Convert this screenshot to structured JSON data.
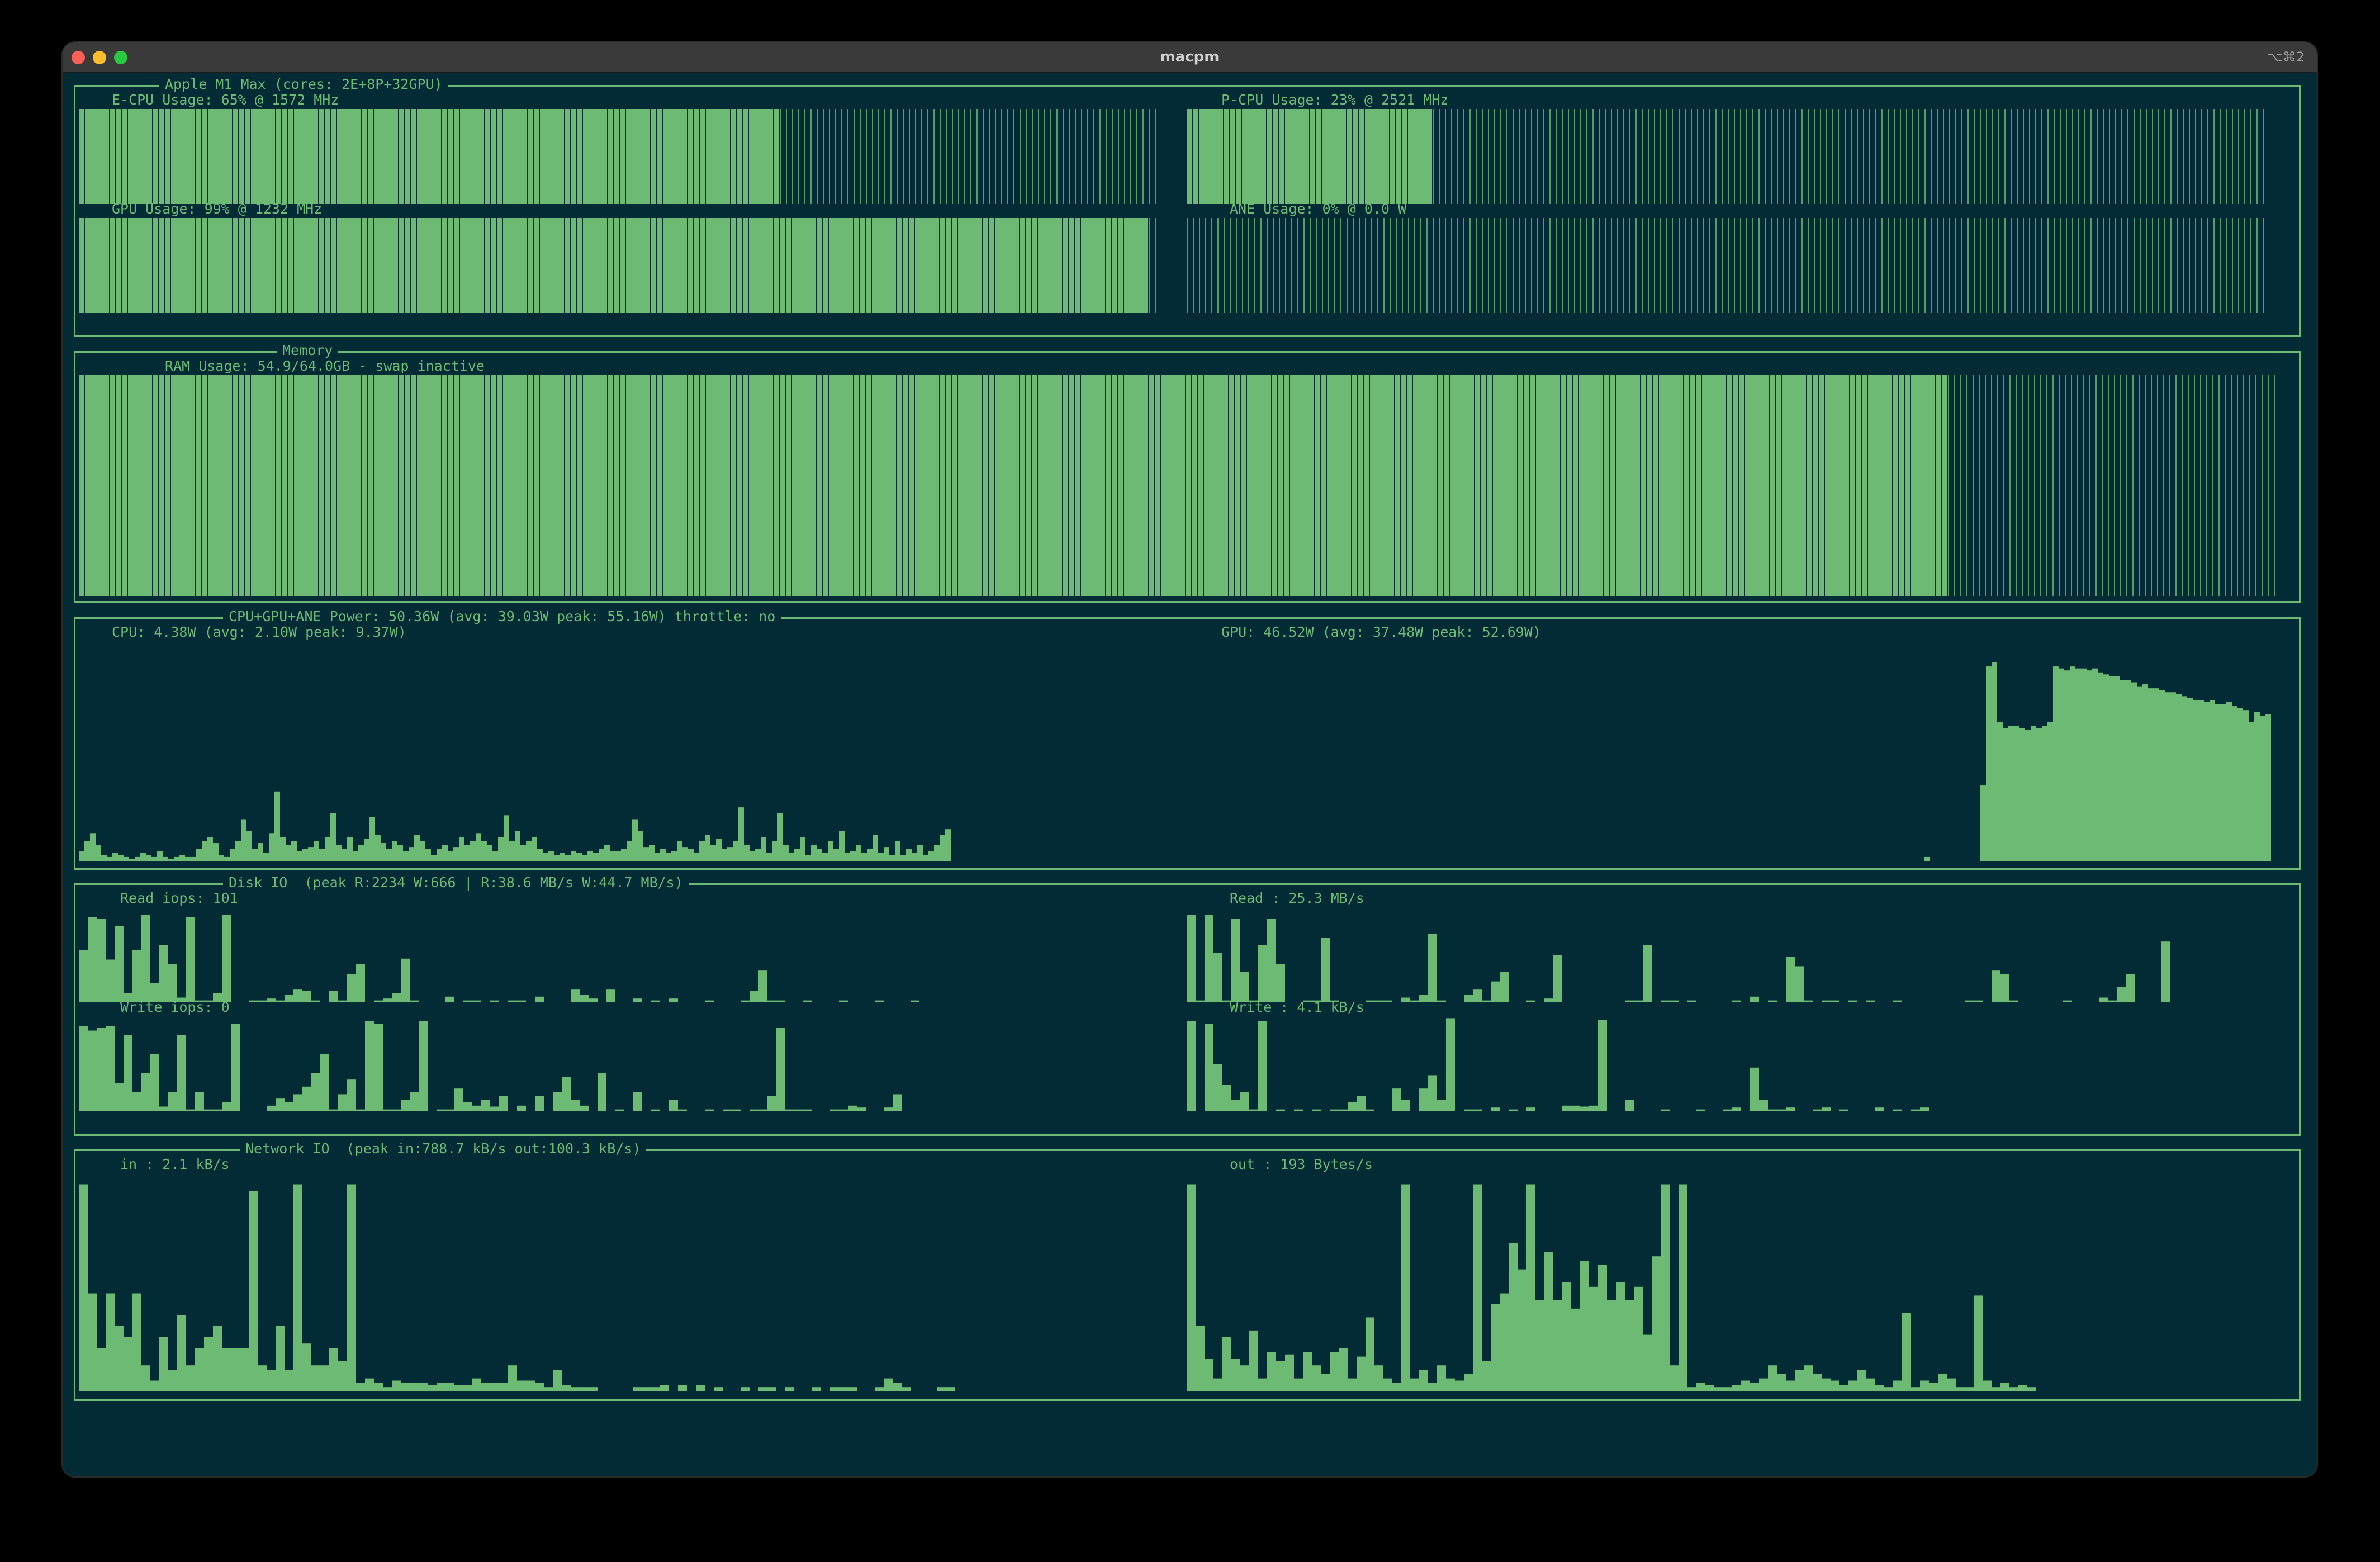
{
  "window": {
    "title": "macpm",
    "shortcut": "⌥⌘2"
  },
  "colors": {
    "background": "#022b35",
    "accent": "#6dba74",
    "titlebar": "#3a3a3a"
  },
  "processor": {
    "title": "Apple M1 Max (cores: 2E+8P+32GPU)",
    "ecpu": {
      "label": "E-CPU Usage: 65% @ 1572 MHz",
      "usage_percent": 65
    },
    "pcpu": {
      "label": "P-CPU Usage: 23% @ 2521 MHz",
      "usage_percent": 23
    },
    "gpu": {
      "label": "GPU Usage: 99% @ 1232 MHz",
      "usage_percent": 99
    },
    "ane": {
      "label": "ANE Usage: 0% @ 0.0 W",
      "usage_percent": 0
    }
  },
  "memory": {
    "title": "Memory",
    "ram": {
      "label": "RAM Usage: 54.9/64.0GB - swap inactive",
      "usage_percent": 85
    }
  },
  "power": {
    "title": "CPU+GPU+ANE Power: 50.36W (avg: 39.03W peak: 55.16W) throttle: no",
    "cpu": {
      "label": "CPU: 4.38W (avg: 2.10W peak: 9.37W)"
    },
    "gpu": {
      "label": "GPU: 46.52W (avg: 37.48W peak: 52.69W)"
    }
  },
  "disk": {
    "title": "Disk IO  (peak R:2234 W:666 | R:38.6 MB/s W:44.7 MB/s)",
    "read_iops": {
      "label": "Read iops: 101"
    },
    "read": {
      "label": "Read : 25.3 MB/s"
    },
    "write_iops": {
      "label": "Write iops: 0"
    },
    "write": {
      "label": "Write : 4.1 kB/s"
    }
  },
  "network": {
    "title": "Network IO  (peak in:788.7 kB/s out:100.3 kB/s)",
    "in": {
      "label": "in : 2.1 kB/s"
    },
    "out": {
      "label": "out : 193 Bytes/s"
    }
  },
  "series": {
    "cpu_power": [
      0.05,
      0.1,
      0.14,
      0.08,
      0.03,
      0.02,
      0.04,
      0.03,
      0.02,
      0.01,
      0.02,
      0.04,
      0.03,
      0.02,
      0.05,
      0.02,
      0.01,
      0.02,
      0.03,
      0.02,
      0.02,
      0.06,
      0.1,
      0.12,
      0.09,
      0.03,
      0.02,
      0.06,
      0.1,
      0.21,
      0.15,
      0.06,
      0.09,
      0.04,
      0.14,
      0.35,
      0.12,
      0.08,
      0.1,
      0.05,
      0.06,
      0.07,
      0.1,
      0.06,
      0.12,
      0.24,
      0.08,
      0.06,
      0.12,
      0.05,
      0.08,
      0.11,
      0.22,
      0.13,
      0.09,
      0.06,
      0.1,
      0.08,
      0.05,
      0.07,
      0.13,
      0.1,
      0.06,
      0.03,
      0.06,
      0.08,
      0.05,
      0.07,
      0.12,
      0.08,
      0.1,
      0.14,
      0.1,
      0.08,
      0.05,
      0.12,
      0.23,
      0.1,
      0.15,
      0.08,
      0.1,
      0.12,
      0.06,
      0.04,
      0.05,
      0.03,
      0.04,
      0.03,
      0.05,
      0.04,
      0.03,
      0.05,
      0.04,
      0.06,
      0.08,
      0.05,
      0.05,
      0.06,
      0.1,
      0.21,
      0.15,
      0.07,
      0.08,
      0.04,
      0.06,
      0.04,
      0.05,
      0.1,
      0.07,
      0.06,
      0.04,
      0.1,
      0.13,
      0.08,
      0.11,
      0.06,
      0.07,
      0.1,
      0.27,
      0.08,
      0.05,
      0.06,
      0.12,
      0.04,
      0.1,
      0.24,
      0.08,
      0.04,
      0.06,
      0.12,
      0.03,
      0.08,
      0.06,
      0.04,
      0.1,
      0.06,
      0.15,
      0.04,
      0.05,
      0.08,
      0.04,
      0.06,
      0.13,
      0.04,
      0.07,
      0.03,
      0.1,
      0.03,
      0.06,
      0.04,
      0.08,
      0.03,
      0.05,
      0.08,
      0.13,
      0.16
    ],
    "gpu_power": [
      0,
      0,
      0,
      0,
      0,
      0,
      0,
      0,
      0,
      0,
      0,
      0,
      0,
      0,
      0,
      0,
      0,
      0,
      0,
      0,
      0,
      0,
      0,
      0,
      0,
      0,
      0,
      0,
      0,
      0,
      0,
      0,
      0,
      0,
      0,
      0,
      0,
      0,
      0,
      0,
      0,
      0,
      0,
      0,
      0,
      0,
      0,
      0,
      0,
      0,
      0,
      0,
      0,
      0,
      0,
      0,
      0,
      0,
      0,
      0,
      0,
      0,
      0,
      0,
      0,
      0,
      0,
      0,
      0,
      0,
      0,
      0,
      0,
      0,
      0,
      0,
      0,
      0,
      0,
      0,
      0,
      0,
      0,
      0,
      0,
      0,
      0,
      0,
      0,
      0,
      0,
      0,
      0,
      0,
      0,
      0,
      0,
      0,
      0,
      0,
      0,
      0,
      0,
      0,
      0,
      0,
      0,
      0,
      0,
      0,
      0,
      0,
      0,
      0,
      0,
      0,
      0,
      0,
      0,
      0,
      0,
      0,
      0,
      0,
      0,
      0,
      0,
      0,
      0,
      0,
      0,
      0,
      0.02,
      0,
      0,
      0,
      0,
      0,
      0,
      0,
      0,
      0,
      0.38,
      0.98,
      1.0,
      0.7,
      0.67,
      0.68,
      0.68,
      0.67,
      0.66,
      0.68,
      0.67,
      0.68,
      0.7,
      0.98,
      0.97,
      0.96,
      0.98,
      0.97,
      0.97,
      0.96,
      0.97,
      0.95,
      0.94,
      0.93,
      0.93,
      0.91,
      0.91,
      0.9,
      0.88,
      0.89,
      0.87,
      0.87,
      0.86,
      0.85,
      0.85,
      0.84,
      0.83,
      0.82,
      0.81,
      0.81,
      0.8,
      0.81,
      0.79,
      0.79,
      0.8,
      0.78,
      0.77,
      0.76,
      0.7,
      0.75,
      0.73,
      0.74,
      0.74,
      0.75,
      0.73,
      0.74,
      0.73,
      0.74,
      0.73,
      0.75,
      0.97,
      0.99,
      0.98,
      0.98,
      0.97,
      0.99,
      0.95,
      0.9,
      0.88
    ],
    "read_iops": [
      0.55,
      0.9,
      0.88,
      0.45,
      0.8,
      0.1,
      0.55,
      0.92,
      0.2,
      0.6,
      0.4,
      0.05,
      0.9,
      0.02,
      0.02,
      0.1,
      0.92,
      0,
      0,
      0.02,
      0.02,
      0.04,
      0.02,
      0.08,
      0.14,
      0.12,
      0.02,
      0,
      0.12,
      0.02,
      0.3,
      0.4,
      0,
      0.02,
      0.04,
      0.1,
      0.46,
      0.02,
      0,
      0,
      0,
      0.06,
      0,
      0.02,
      0.02,
      0,
      0.02,
      0,
      0.02,
      0.02,
      0,
      0.06,
      0,
      0,
      0,
      0.14,
      0.08,
      0.04,
      0,
      0.14,
      0,
      0,
      0.04,
      0,
      0.02,
      0,
      0.04,
      0,
      0,
      0,
      0.02,
      0,
      0,
      0,
      0.02,
      0.12,
      0.34,
      0.02,
      0.02,
      0,
      0,
      0.02,
      0,
      0,
      0,
      0.02,
      0,
      0,
      0,
      0.02,
      0,
      0,
      0,
      0.02
    ],
    "read_mbps": [
      0.92,
      0.02,
      0.92,
      0.52,
      0.02,
      0.88,
      0.32,
      0.02,
      0.6,
      0.88,
      0.4,
      0,
      0,
      0.02,
      0.02,
      0.68,
      0.02,
      0,
      0,
      0,
      0.02,
      0.02,
      0.02,
      0,
      0.05,
      0.02,
      0.08,
      0.72,
      0.02,
      0,
      0,
      0.08,
      0.14,
      0.02,
      0.22,
      0.32,
      0,
      0,
      0.02,
      0,
      0.04,
      0.5,
      0,
      0,
      0,
      0,
      0,
      0,
      0,
      0.02,
      0.02,
      0.6,
      0,
      0.02,
      0.02,
      0,
      0.02,
      0,
      0,
      0,
      0,
      0.02,
      0,
      0.06,
      0,
      0.02,
      0,
      0.48,
      0.38,
      0.02,
      0,
      0.02,
      0.02,
      0,
      0.02,
      0,
      0.02,
      0,
      0,
      0.02,
      0,
      0,
      0,
      0,
      0,
      0,
      0,
      0.02,
      0.02,
      0,
      0.34,
      0.3,
      0.02,
      0,
      0,
      0,
      0,
      0,
      0.02,
      0,
      0,
      0,
      0.05,
      0.02,
      0.16,
      0.3,
      0,
      0,
      0,
      0.64
    ],
    "write_iops": [
      0.9,
      0.85,
      0.88,
      0.9,
      0.3,
      0.8,
      0.2,
      0.4,
      0.6,
      0.05,
      0.2,
      0.8,
      0.02,
      0.2,
      0.02,
      0.02,
      0.1,
      0.92,
      0,
      0,
      0,
      0.06,
      0.14,
      0.1,
      0.18,
      0.26,
      0.4,
      0.6,
      0.02,
      0.18,
      0.34,
      0.02,
      0.95,
      0.92,
      0.02,
      0.02,
      0.12,
      0.2,
      0.95,
      0,
      0.02,
      0.02,
      0.24,
      0.1,
      0.06,
      0.12,
      0.05,
      0.16,
      0,
      0.06,
      0,
      0.16,
      0,
      0.2,
      0.36,
      0.12,
      0.06,
      0,
      0.4,
      0,
      0.02,
      0,
      0.2,
      0,
      0.02,
      0,
      0.12,
      0.02,
      0,
      0,
      0.02,
      0,
      0.02,
      0.02,
      0,
      0.02,
      0.02,
      0.16,
      0.88,
      0.02,
      0.02,
      0.02,
      0,
      0,
      0.02,
      0.02,
      0.06,
      0.04,
      0,
      0,
      0.04,
      0.18
    ],
    "write_kbps": [
      0.95,
      0,
      0.92,
      0.5,
      0.28,
      0.12,
      0.2,
      0.02,
      0.95,
      0,
      0.02,
      0,
      0.02,
      0,
      0.02,
      0,
      0.02,
      0.02,
      0.1,
      0.16,
      0.02,
      0,
      0,
      0.24,
      0.12,
      0,
      0.24,
      0.38,
      0.12,
      0.98,
      0,
      0.02,
      0.02,
      0,
      0.04,
      0,
      0.02,
      0,
      0.04,
      0,
      0,
      0,
      0.06,
      0.06,
      0.05,
      0.06,
      0.96,
      0,
      0,
      0.12,
      0,
      0,
      0,
      0.02,
      0,
      0,
      0,
      0.02,
      0,
      0,
      0.02,
      0.04,
      0,
      0.46,
      0.12,
      0.02,
      0.02,
      0.04,
      0,
      0,
      0.02,
      0.04,
      0,
      0.02,
      0,
      0,
      0,
      0.04,
      0,
      0.02,
      0,
      0.02,
      0.04
    ],
    "net_in": [
      0.95,
      0.45,
      0.2,
      0.45,
      0.3,
      0.25,
      0.45,
      0.12,
      0.05,
      0.25,
      0.1,
      0.35,
      0.12,
      0.2,
      0.25,
      0.3,
      0.2,
      0.2,
      0.2,
      0.92,
      0.12,
      0.1,
      0.3,
      0.1,
      0.95,
      0.22,
      0.12,
      0.12,
      0.2,
      0.14,
      0.95,
      0.04,
      0.06,
      0.04,
      0.02,
      0.05,
      0.04,
      0.04,
      0.04,
      0.03,
      0.04,
      0.04,
      0.03,
      0.03,
      0.06,
      0.04,
      0.04,
      0.04,
      0.12,
      0.05,
      0.05,
      0.04,
      0.02,
      0.1,
      0.03,
      0.02,
      0.02,
      0.02,
      0,
      0,
      0,
      0,
      0.02,
      0.02,
      0.02,
      0.03,
      0,
      0.03,
      0,
      0.03,
      0,
      0.02,
      0,
      0,
      0.02,
      0,
      0.02,
      0.02,
      0,
      0.02,
      0,
      0,
      0.02,
      0,
      0.02,
      0.02,
      0.02,
      0,
      0,
      0.02,
      0.06,
      0.04,
      0.02,
      0,
      0,
      0,
      0.02,
      0.02
    ],
    "net_out": [
      0.95,
      0.3,
      0.15,
      0.06,
      0.25,
      0.15,
      0.12,
      0.28,
      0.06,
      0.18,
      0.14,
      0.17,
      0.06,
      0.18,
      0.12,
      0.08,
      0.18,
      0.2,
      0.06,
      0.16,
      0.34,
      0.12,
      0.06,
      0.04,
      0.95,
      0.06,
      0.1,
      0.04,
      0.12,
      0.06,
      0.05,
      0.08,
      0.95,
      0.14,
      0.4,
      0.45,
      0.68,
      0.56,
      0.95,
      0.42,
      0.64,
      0.42,
      0.5,
      0.38,
      0.6,
      0.48,
      0.58,
      0.42,
      0.5,
      0.42,
      0.48,
      0.26,
      0.62,
      0.95,
      0.12,
      0.95,
      0.02,
      0.04,
      0.03,
      0.02,
      0.02,
      0.03,
      0.05,
      0.04,
      0.06,
      0.12,
      0.08,
      0.05,
      0.1,
      0.12,
      0.08,
      0.06,
      0.05,
      0.03,
      0.05,
      0.1,
      0.06,
      0.03,
      0.02,
      0.05,
      0.36,
      0.02,
      0.05,
      0.04,
      0.08,
      0.06,
      0.02,
      0.02,
      0.44,
      0.05,
      0.02,
      0.04,
      0.02,
      0.03,
      0.02
    ]
  }
}
